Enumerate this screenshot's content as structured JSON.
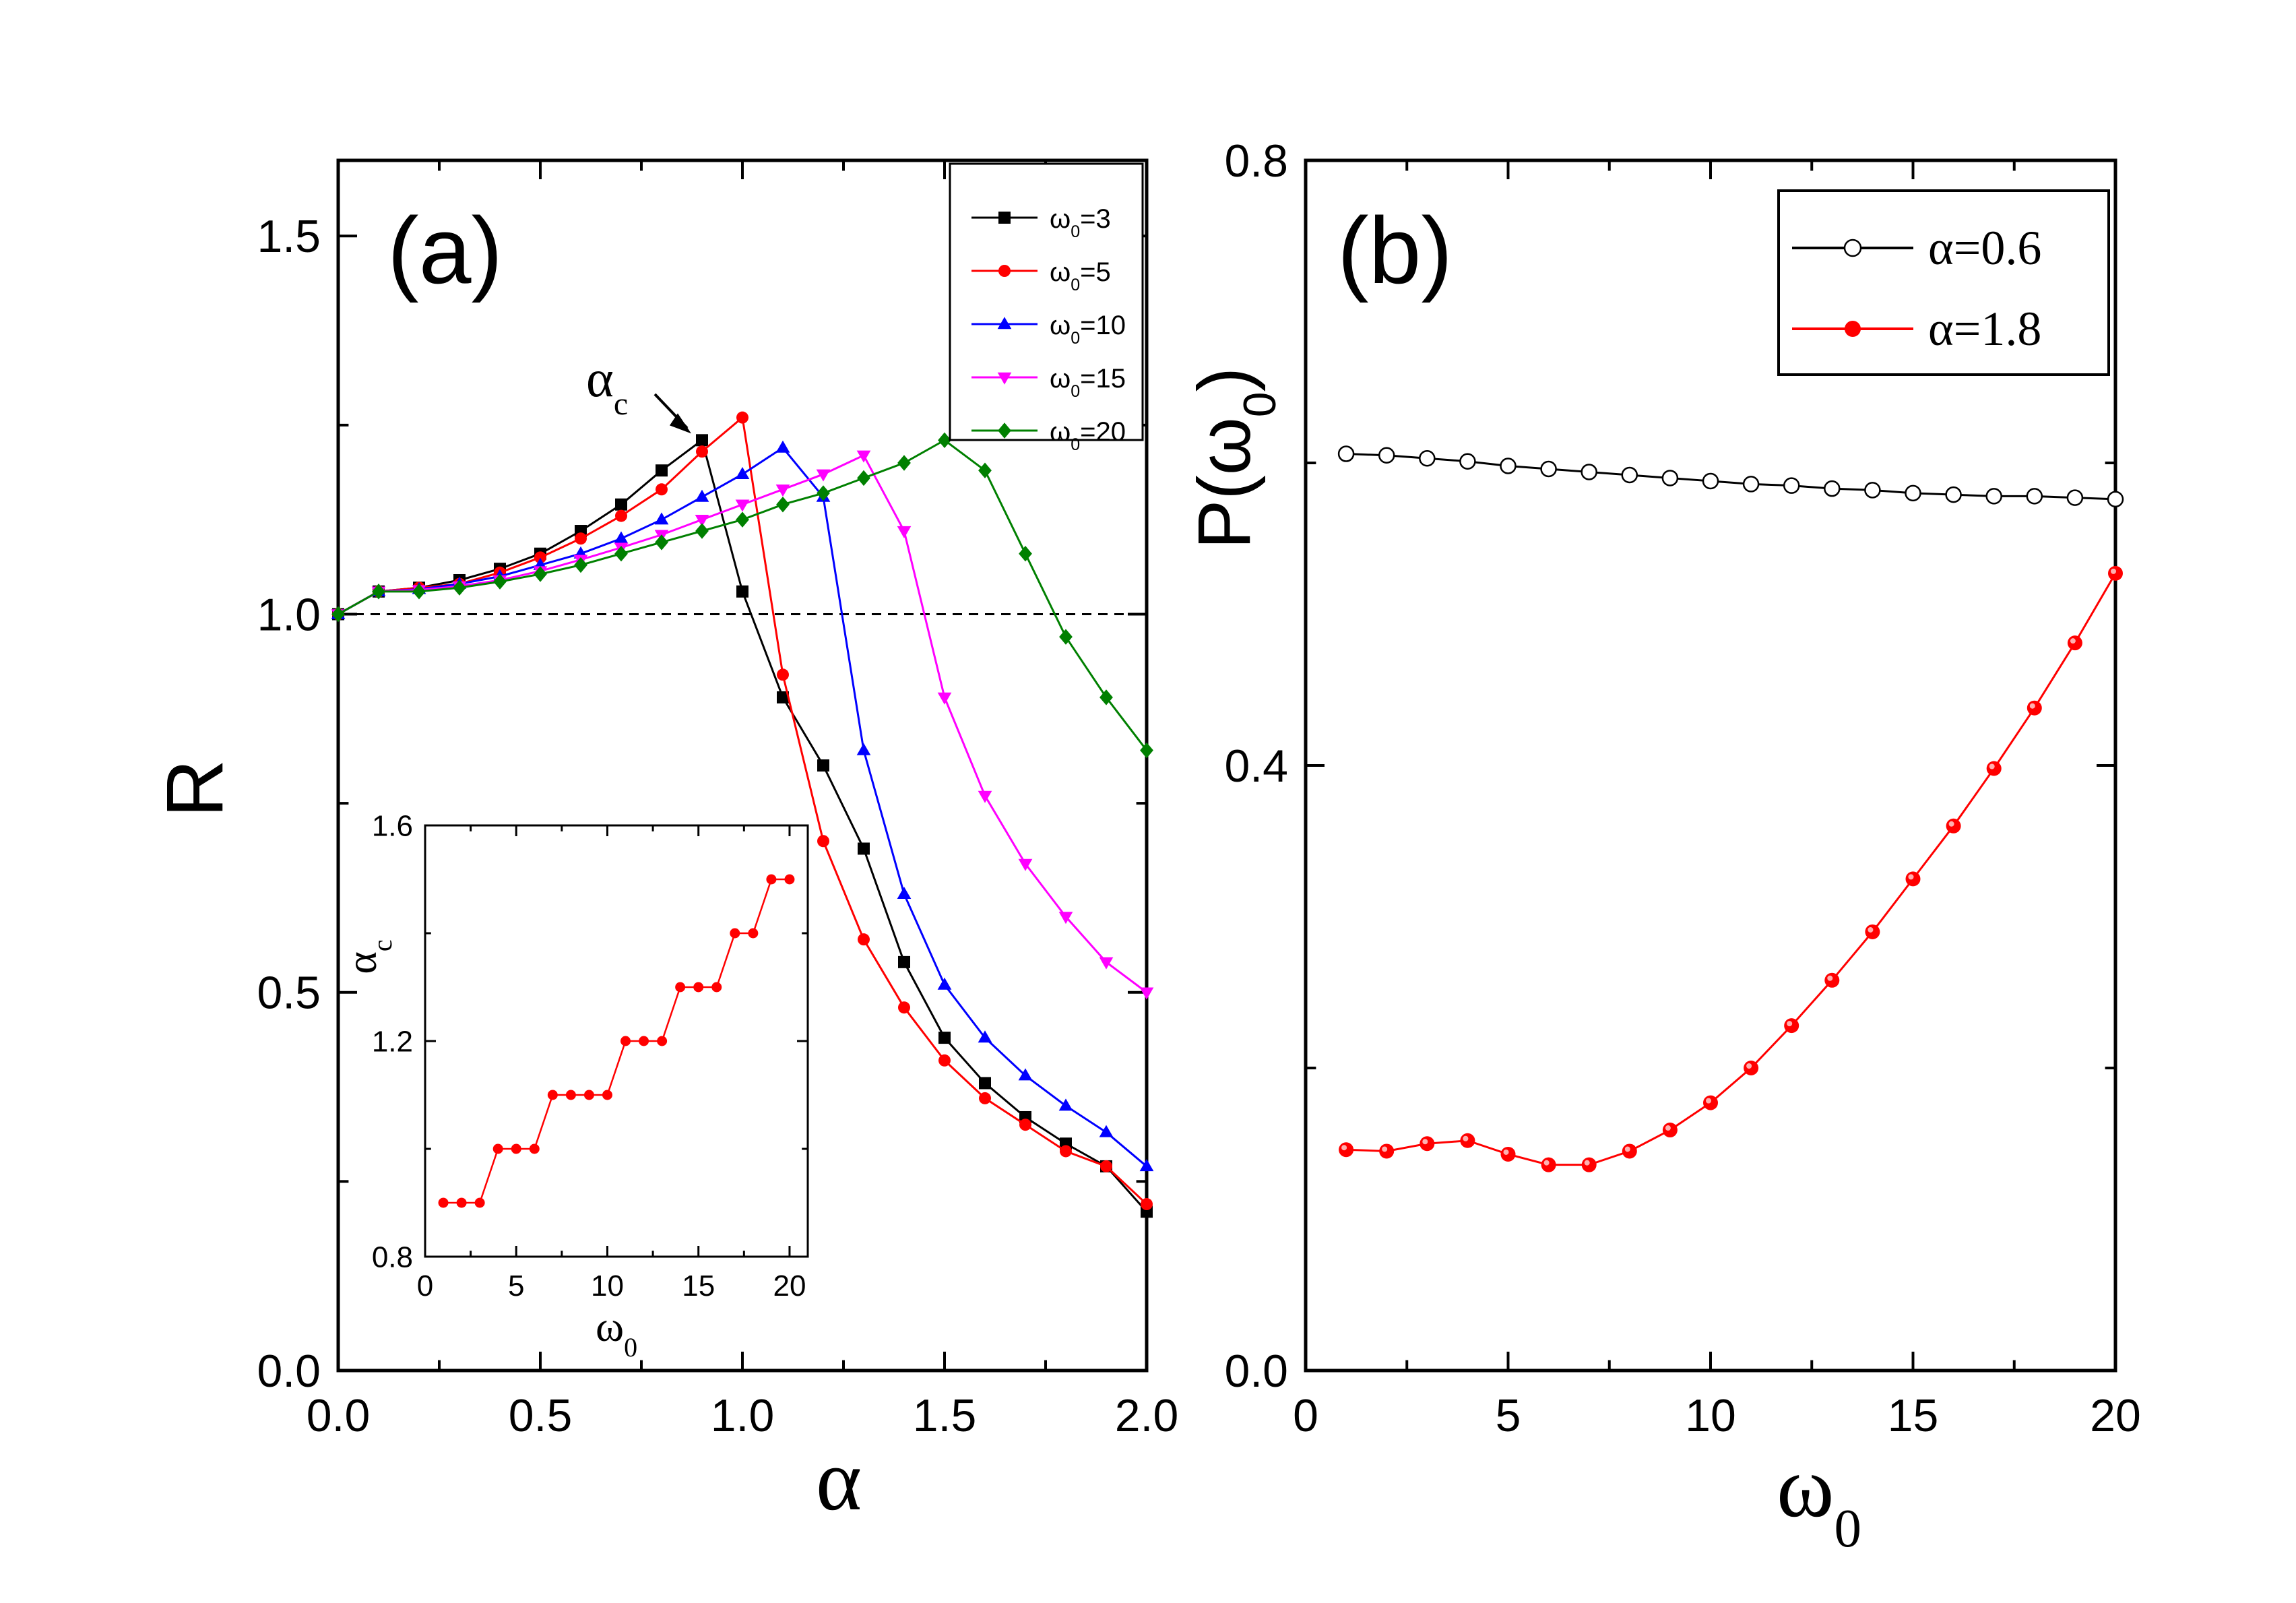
{
  "chart_data": [
    {
      "id": "a",
      "type": "line",
      "panel_label": "(a)",
      "ylabel": "R",
      "xlabel": "α",
      "xlim": [
        0.0,
        2.0
      ],
      "ylim": [
        0.0,
        1.6
      ],
      "xticks": [
        "0.0",
        "0.5",
        "1.0",
        "1.5",
        "2.0"
      ],
      "yticks": [
        "0.0",
        "0.5",
        "1.0",
        "1.5"
      ],
      "reference_line": {
        "y": 1.0,
        "style": "dashed"
      },
      "annotation": {
        "text": "α",
        "sub": "c",
        "points_to_x": 0.9,
        "points_to_y": 1.23
      },
      "legend_position": "top-right",
      "x": [
        0.0,
        0.1,
        0.2,
        0.3,
        0.4,
        0.5,
        0.6,
        0.7,
        0.8,
        0.9,
        1.0,
        1.1,
        1.2,
        1.3,
        1.4,
        1.5,
        1.6,
        1.7,
        1.8,
        1.9,
        2.0
      ],
      "series": [
        {
          "name": "ω",
          "sub": "0",
          "value": "=3",
          "color": "#000000",
          "marker": "square",
          "values": [
            1.0,
            1.03,
            1.035,
            1.045,
            1.06,
            1.08,
            1.11,
            1.145,
            1.19,
            1.23,
            1.03,
            0.89,
            0.8,
            0.69,
            0.54,
            0.44,
            0.38,
            0.335,
            0.3,
            0.27,
            0.21
          ]
        },
        {
          "name": "ω",
          "sub": "0",
          "value": "=5",
          "color": "#ff0000",
          "marker": "circle",
          "values": [
            1.0,
            1.03,
            1.035,
            1.04,
            1.055,
            1.075,
            1.1,
            1.13,
            1.165,
            1.215,
            1.26,
            0.92,
            0.7,
            0.57,
            0.48,
            0.41,
            0.36,
            0.325,
            0.29,
            0.27,
            0.22
          ]
        },
        {
          "name": "ω",
          "sub": "0",
          "value": "=10",
          "color": "#0000ff",
          "marker": "triangle-up",
          "values": [
            1.0,
            1.03,
            1.033,
            1.04,
            1.05,
            1.065,
            1.08,
            1.1,
            1.125,
            1.155,
            1.185,
            1.22,
            1.155,
            0.82,
            0.63,
            0.51,
            0.44,
            0.39,
            0.35,
            0.315,
            0.27
          ]
        },
        {
          "name": "ω",
          "sub": "0",
          "value": "=15",
          "color": "#ff00ff",
          "marker": "triangle-down",
          "values": [
            1.0,
            1.03,
            1.032,
            1.037,
            1.045,
            1.057,
            1.072,
            1.088,
            1.105,
            1.125,
            1.145,
            1.165,
            1.185,
            1.21,
            1.11,
            0.89,
            0.76,
            0.67,
            0.6,
            0.54,
            0.5
          ]
        },
        {
          "name": "ω",
          "sub": "0",
          "value": "=20",
          "color": "#008000",
          "marker": "diamond",
          "values": [
            1.0,
            1.03,
            1.03,
            1.035,
            1.043,
            1.053,
            1.065,
            1.08,
            1.095,
            1.11,
            1.125,
            1.145,
            1.16,
            1.18,
            1.2,
            1.23,
            1.19,
            1.08,
            0.97,
            0.89,
            0.82
          ]
        }
      ]
    },
    {
      "id": "a-inset",
      "type": "line",
      "ylabel": "α",
      "ylabel_sub": "c",
      "xlabel": "ω",
      "xlabel_sub": "0",
      "xlim": [
        0,
        21
      ],
      "ylim": [
        0.8,
        1.6
      ],
      "xticks": [
        "0",
        "5",
        "10",
        "15",
        "20"
      ],
      "yticks": [
        "0.8",
        "1.2",
        "1.6"
      ],
      "series": [
        {
          "name": "α_c",
          "color": "#ff0000",
          "marker": "circle",
          "x": [
            1,
            2,
            3,
            4,
            5,
            6,
            7,
            8,
            9,
            10,
            11,
            12,
            13,
            14,
            15,
            16,
            17,
            18,
            19,
            20
          ],
          "values": [
            0.9,
            0.9,
            0.9,
            1.0,
            1.0,
            1.0,
            1.1,
            1.1,
            1.1,
            1.1,
            1.2,
            1.2,
            1.2,
            1.3,
            1.3,
            1.3,
            1.4,
            1.4,
            1.5,
            1.5
          ]
        }
      ]
    },
    {
      "id": "b",
      "type": "line",
      "panel_label": "(b)",
      "ylabel": "P(ω",
      "ylabel_sub": "0",
      "ylabel_close": ")",
      "xlabel": "ω",
      "xlabel_sub": "0",
      "xlim": [
        0,
        20
      ],
      "ylim": [
        0.0,
        0.8
      ],
      "xticks": [
        "0",
        "5",
        "10",
        "15",
        "20"
      ],
      "yticks": [
        "0.0",
        "0.4",
        "0.8"
      ],
      "legend_position": "top-right",
      "series": [
        {
          "name": "α=0.6",
          "color": "#000000",
          "marker": "open-circle",
          "x": [
            1,
            2,
            3,
            4,
            5,
            6,
            7,
            8,
            9,
            10,
            11,
            12,
            13,
            14,
            15,
            16,
            17,
            18,
            19,
            20
          ],
          "values": [
            0.606,
            0.605,
            0.603,
            0.601,
            0.598,
            0.596,
            0.594,
            0.592,
            0.59,
            0.588,
            0.586,
            0.585,
            0.583,
            0.582,
            0.58,
            0.579,
            0.578,
            0.578,
            0.577,
            0.576
          ]
        },
        {
          "name": "α=1.8",
          "color": "#ff0000",
          "marker": "circle",
          "x": [
            1,
            2,
            3,
            4,
            5,
            6,
            7,
            8,
            9,
            10,
            11,
            12,
            13,
            14,
            15,
            16,
            17,
            18,
            19,
            20
          ],
          "values": [
            0.146,
            0.145,
            0.15,
            0.152,
            0.143,
            0.136,
            0.136,
            0.145,
            0.159,
            0.177,
            0.2,
            0.228,
            0.258,
            0.29,
            0.325,
            0.36,
            0.398,
            0.438,
            0.481,
            0.527
          ]
        }
      ]
    }
  ]
}
